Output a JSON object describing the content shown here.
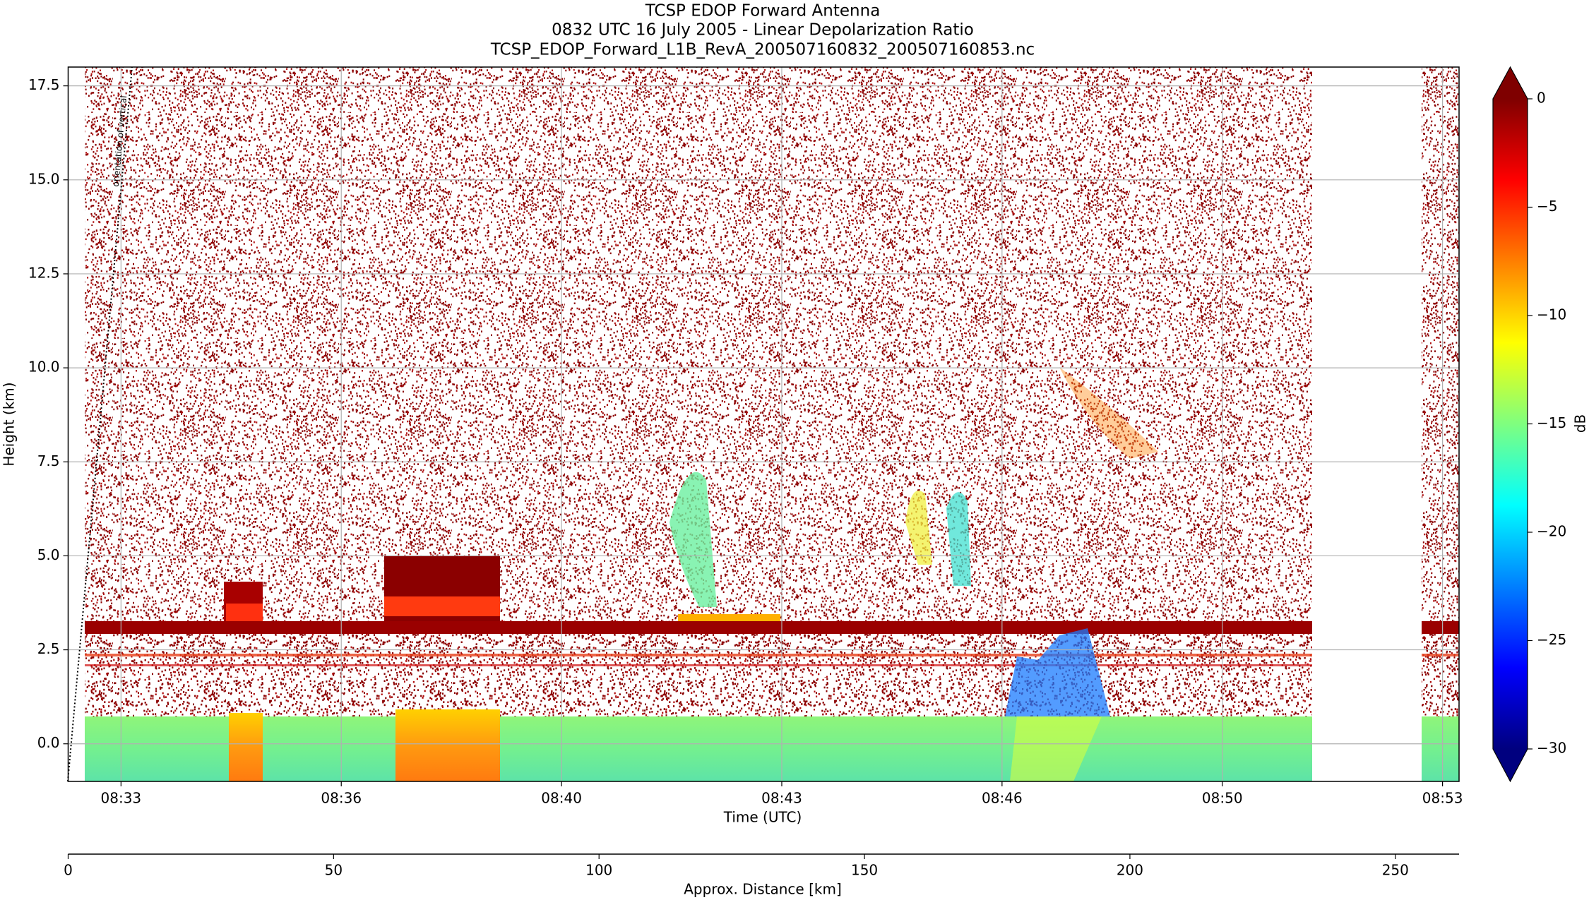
{
  "chart_data": {
    "type": "heatmap",
    "title": "TCSP EDOP Forward Antenna",
    "subtitle": "0832 UTC 16 July 2005 - Linear Depolarization Ratio",
    "filename": "TCSP_EDOP_Forward_L1B_RevA_200507160832_200507160853.nc",
    "xlabel": "Time (UTC)",
    "ylabel": "Height (km)",
    "xlim": [
      "08:32:32",
      "08:53:35"
    ],
    "xticks": [
      {
        "value": "08:33:20",
        "label": "08:33"
      },
      {
        "value": "08:36:40",
        "label": "08:36"
      },
      {
        "value": "08:40:00",
        "label": "08:40"
      },
      {
        "value": "08:43:20",
        "label": "08:43"
      },
      {
        "value": "08:46:40",
        "label": "08:46"
      },
      {
        "value": "08:50:00",
        "label": "08:50"
      },
      {
        "value": "08:53:20",
        "label": "08:53"
      }
    ],
    "ylim": [
      -1,
      18
    ],
    "yticks": [
      {
        "value": 0,
        "label": "0.0"
      },
      2.5,
      {
        "value": 5,
        "label": "5.0"
      },
      7.5,
      {
        "value": 10,
        "label": "10.0"
      },
      12.5,
      {
        "value": 15,
        "label": "15.0"
      },
      17.5
    ],
    "grid": true,
    "x2label": "Approx. Distance [km]",
    "x2lim": [
      0,
      262
    ],
    "x2ticks": [
      0,
      50,
      100,
      150,
      200,
      250
    ],
    "annotation": "orientation of vertical",
    "colorbar": {
      "label": "dB",
      "lim": [
        -30,
        0
      ],
      "ticks": [
        0,
        {
          "value": -5,
          "label": "−5"
        },
        {
          "value": -10,
          "label": "−10"
        },
        {
          "value": -15,
          "label": "−15"
        },
        {
          "value": -20,
          "label": "−20"
        },
        {
          "value": -25,
          "label": "−25"
        },
        {
          "value": -30,
          "label": "−30"
        }
      ],
      "extend": "both",
      "colormap": [
        "#00007f",
        "#0000ff",
        "#007fff",
        "#00ffff",
        "#7fff7f",
        "#ffff00",
        "#ff7f00",
        "#ff0000",
        "#7f0000"
      ]
    }
  }
}
